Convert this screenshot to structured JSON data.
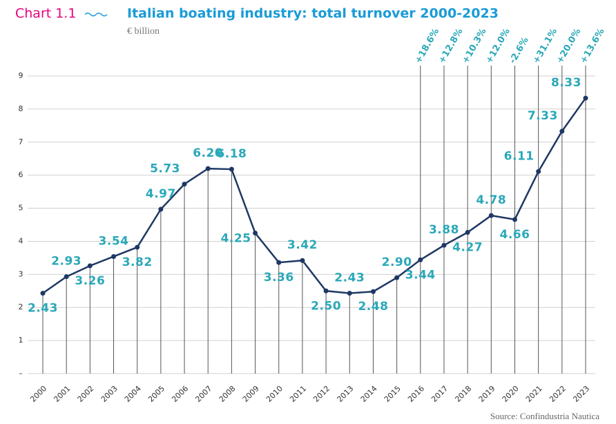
{
  "chart_data": {
    "type": "line",
    "chart_label": "Chart 1.1",
    "title": "Italian boating industry: total turnover 2000-2023",
    "subtitle": "€ billion",
    "source": "Source: Confindustria Nautica",
    "categories": [
      "2000",
      "2001",
      "2002",
      "2003",
      "2004",
      "2005",
      "2006",
      "2007",
      "2008",
      "2009",
      "2010",
      "2011",
      "2012",
      "2013",
      "2014",
      "2015",
      "2016",
      "2017",
      "2018",
      "2019",
      "2020",
      "2021",
      "2022",
      "2023"
    ],
    "values": [
      2.43,
      2.93,
      3.26,
      3.54,
      3.82,
      4.97,
      5.73,
      6.2,
      6.18,
      4.25,
      3.36,
      3.42,
      2.5,
      2.43,
      2.48,
      2.9,
      3.44,
      3.88,
      4.27,
      4.78,
      4.66,
      6.11,
      7.33,
      8.33
    ],
    "value_labels": [
      "2.43",
      "2.93",
      "3.26",
      "3.54",
      "3.82",
      "4.97",
      "5.73",
      "6.20",
      "6.18",
      "4.25",
      "3.36",
      "3.42",
      "2.50",
      "2.43",
      "2.48",
      "2.90",
      "3.44",
      "3.88",
      "4.27",
      "4.78",
      "4.66",
      "6.11",
      "7.33",
      "8.33"
    ],
    "color": "#1f3864",
    "ylim": [
      0,
      9
    ],
    "yticks": [
      {
        "value": 0,
        "label": "–"
      },
      1,
      2,
      3,
      4,
      5,
      6,
      7,
      8,
      9
    ],
    "grid": true,
    "annotations": [
      {
        "x": "2016",
        "text": "+18.6%"
      },
      {
        "x": "2017",
        "text": "+12.8%"
      },
      {
        "x": "2018",
        "text": "+10.3%"
      },
      {
        "x": "2019",
        "text": "+12.0%"
      },
      {
        "x": "2020",
        "text": "-2.6%"
      },
      {
        "x": "2021",
        "text": "+31.1%"
      },
      {
        "x": "2022",
        "text": "+20.0%"
      },
      {
        "x": "2023",
        "text": "+13.6%"
      }
    ]
  }
}
